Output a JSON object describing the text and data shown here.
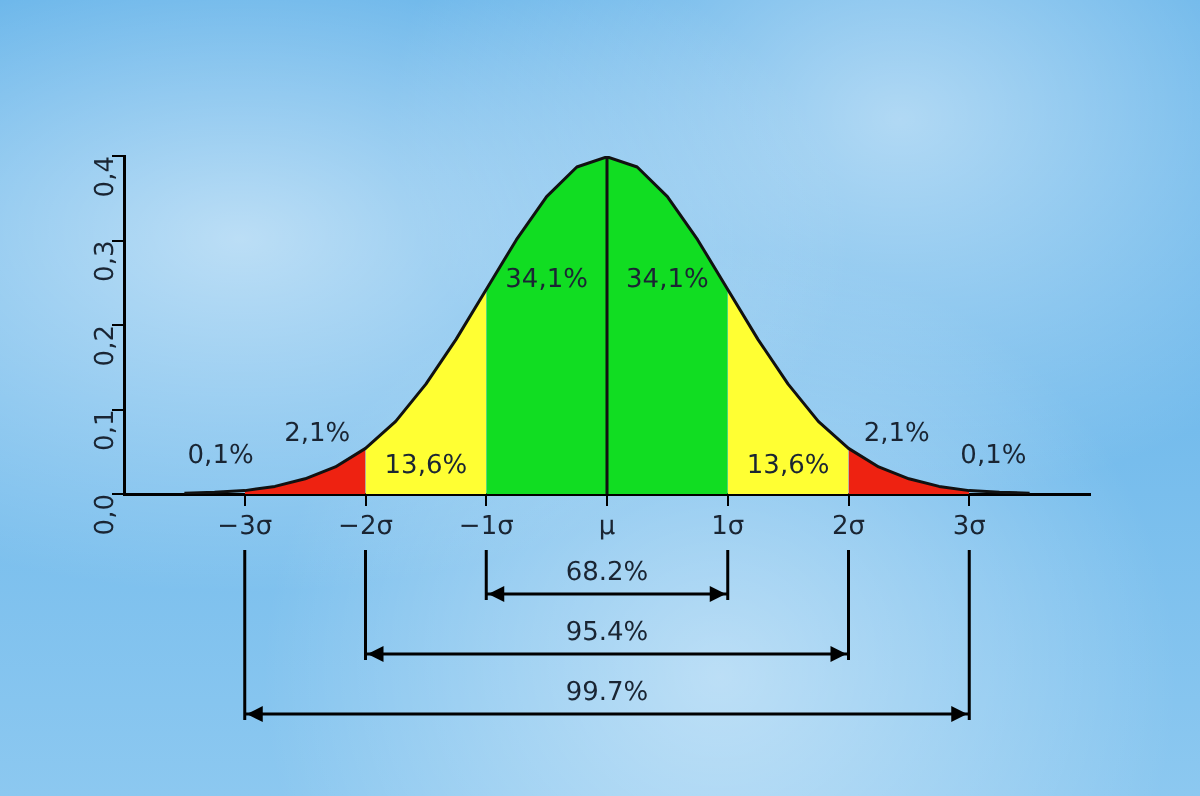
{
  "chart_data": {
    "type": "area",
    "xlim": [
      -4,
      4
    ],
    "xticks": [
      {
        "value": -3,
        "label": "−3σ"
      },
      {
        "value": -2,
        "label": "−2σ"
      },
      {
        "value": -1,
        "label": "−1σ"
      },
      {
        "value": 0,
        "label": "μ"
      },
      {
        "value": 1,
        "label": "1σ"
      },
      {
        "value": 2,
        "label": "2σ"
      },
      {
        "value": 3,
        "label": "3σ"
      }
    ],
    "ylim": [
      0,
      0.4
    ],
    "yticks": [
      {
        "value": 0,
        "label": "0,0"
      },
      {
        "value": 0.1,
        "label": "0,1"
      },
      {
        "value": 0.2,
        "label": "0,2"
      },
      {
        "value": 0.3,
        "label": "0,3"
      },
      {
        "value": 0.4,
        "label": "0,4"
      }
    ],
    "grid": false,
    "legend": false,
    "marker": "none",
    "series": [
      {
        "color": "#ee2211",
        "x": [
          -3,
          -2.75,
          -2.5,
          -2.25,
          -2
        ],
        "values": [
          0.004,
          0.009,
          0.018,
          0.032,
          0.054
        ]
      },
      {
        "color": "#ffff33",
        "x": [
          -2,
          -1.75,
          -1.5,
          -1.25,
          -1
        ],
        "values": [
          0.054,
          0.086,
          0.13,
          0.183,
          0.242
        ]
      },
      {
        "color": "#11dd22",
        "x": [
          -1,
          -0.75,
          -0.5,
          -0.25,
          0,
          0.25,
          0.5,
          0.75,
          1
        ],
        "values": [
          0.242,
          0.301,
          0.352,
          0.387,
          0.399,
          0.387,
          0.352,
          0.301,
          0.242
        ]
      },
      {
        "color": "#ffff33",
        "x": [
          1,
          1.25,
          1.5,
          1.75,
          2
        ],
        "values": [
          0.242,
          0.183,
          0.13,
          0.086,
          0.054
        ]
      },
      {
        "color": "#ee2211",
        "x": [
          2,
          2.25,
          2.5,
          2.75,
          3
        ],
        "values": [
          0.054,
          0.032,
          0.018,
          0.009,
          0.004
        ]
      },
      {
        "type": "line",
        "color": "#111111",
        "x": [
          -3.5,
          -3.25,
          -3,
          -2.75,
          -2.5,
          -2.25,
          -2,
          -1.75,
          -1.5,
          -1.25,
          -1,
          -0.75,
          -0.5,
          -0.25,
          0,
          0.25,
          0.5,
          0.75,
          1,
          1.25,
          1.5,
          1.75,
          2,
          2.25,
          2.5,
          2.75,
          3,
          3.25,
          3.5
        ],
        "values": [
          0.001,
          0.002,
          0.004,
          0.009,
          0.018,
          0.032,
          0.054,
          0.086,
          0.13,
          0.183,
          0.242,
          0.301,
          0.352,
          0.387,
          0.399,
          0.387,
          0.352,
          0.301,
          0.242,
          0.183,
          0.13,
          0.086,
          0.054,
          0.032,
          0.018,
          0.009,
          0.004,
          0.002,
          0.001
        ]
      }
    ],
    "ref_lines": [
      {
        "axis": "x",
        "value": 0,
        "color": "#111111"
      }
    ],
    "annotations": [
      "0,1%",
      "2,1%",
      "13,6%",
      "34,1%",
      "34,1%",
      "13,6%",
      "2,1%",
      "0,1%",
      "68.2%",
      "95.4%",
      "99.7%"
    ]
  }
}
